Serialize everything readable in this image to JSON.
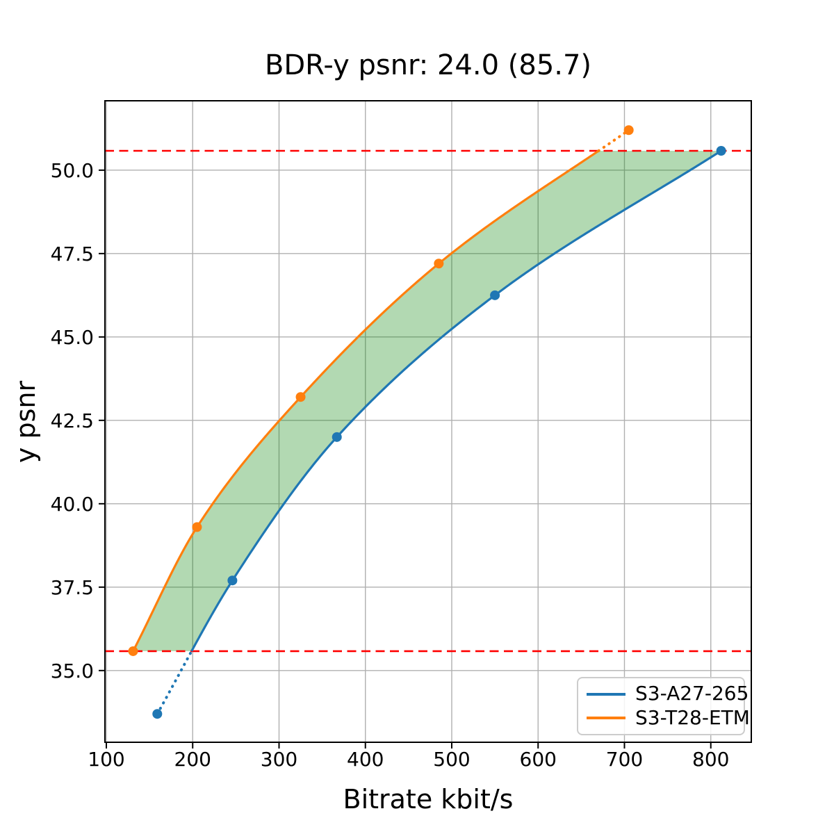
{
  "title": "BDR-y psnr: 24.0 (85.7)",
  "axes": {
    "xlabel": "Bitrate kbit/s",
    "ylabel": "y psnr"
  },
  "chart_data": {
    "type": "line",
    "title": "BDR-y psnr: 24.0 (85.7)",
    "xlabel": "Bitrate kbit/s",
    "ylabel": "y psnr",
    "xlim": [
      98.4,
      846.9
    ],
    "ylim": [
      32.85,
      52.08
    ],
    "xticks": [
      100,
      200,
      300,
      400,
      500,
      600,
      700,
      800
    ],
    "yticks": [
      35.0,
      37.5,
      40.0,
      42.5,
      45.0,
      47.5,
      50.0
    ],
    "grid": true,
    "grid_color": "#b0b0b0",
    "legend_position": "lower right",
    "series": [
      {
        "name": "S3-A27-265",
        "color": "#1f77b4",
        "points": [
          [
            159,
            33.7
          ],
          [
            246,
            37.7
          ],
          [
            367,
            42.0
          ],
          [
            550,
            46.25
          ],
          [
            812,
            50.58
          ]
        ]
      },
      {
        "name": "S3-T28-ETM",
        "color": "#ff7f0e",
        "points": [
          [
            131,
            35.58
          ],
          [
            205,
            39.3
          ],
          [
            325,
            43.2
          ],
          [
            485,
            47.2
          ],
          [
            705,
            51.2
          ]
        ]
      }
    ],
    "bd_bounds": {
      "psnr_low": 35.58,
      "psnr_high": 50.58,
      "line_color": "#ff0000",
      "line_style": "dashed"
    },
    "shaded_region": {
      "fill_color": "#008000",
      "fill_opacity": 0.3,
      "description": "area between curves within bd_bounds"
    }
  }
}
